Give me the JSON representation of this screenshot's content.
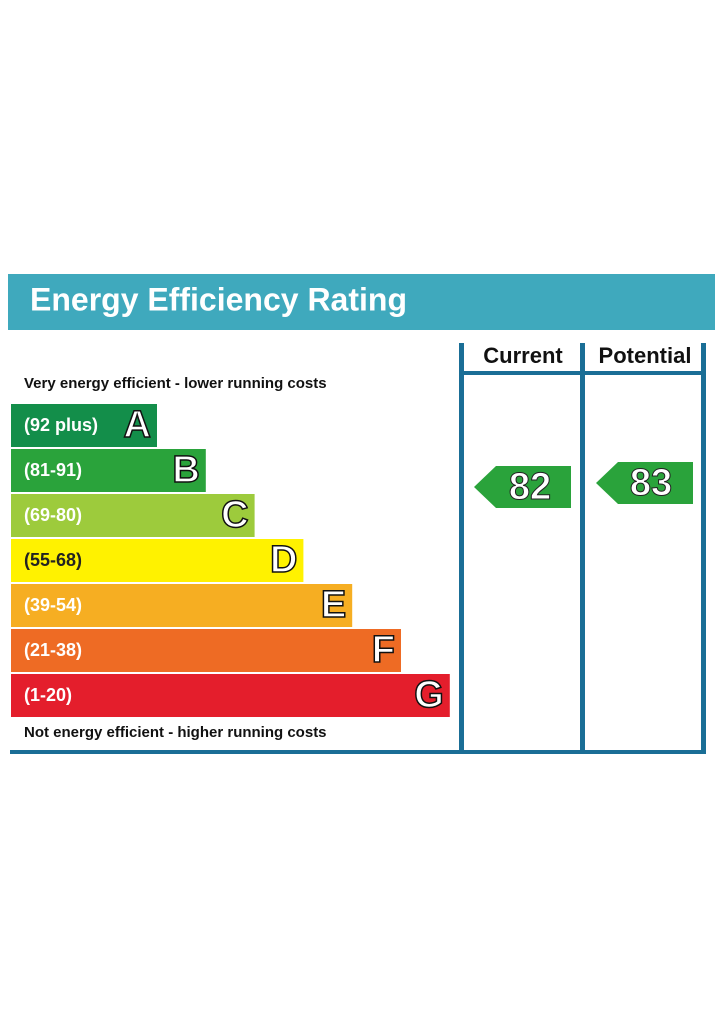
{
  "title": "Energy Efficiency Rating",
  "columns": [
    "Current",
    "Potential"
  ],
  "top_note": "Very energy efficient - lower running costs",
  "bottom_note": "Not energy efficient - higher running costs",
  "bands": [
    {
      "range": "(92 plus)",
      "letter": "A",
      "color": "#138e4a"
    },
    {
      "range": "(81-91)",
      "letter": "B",
      "color": "#2aa33b"
    },
    {
      "range": "(69-80)",
      "letter": "C",
      "color": "#9dcb3c"
    },
    {
      "range": "(55-68)",
      "letter": "D",
      "color": "#fff200"
    },
    {
      "range": "(39-54)",
      "letter": "E",
      "color": "#f6ae22"
    },
    {
      "range": "(21-38)",
      "letter": "F",
      "color": "#ee6b24"
    },
    {
      "range": "(1-20)",
      "letter": "G",
      "color": "#e41e2c"
    }
  ],
  "current": {
    "value": 82,
    "color": "#2aa33b"
  },
  "potential": {
    "value": 83,
    "color": "#2aa33b"
  }
}
